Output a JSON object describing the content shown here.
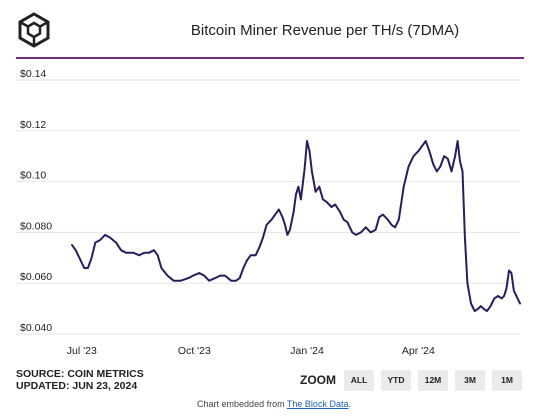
{
  "title": "Bitcoin Miner Revenue per TH/s (7DMA)",
  "footer": {
    "source": "SOURCE: COIN METRICS",
    "updated": "UPDATED: JUN 23, 2024"
  },
  "zoom": {
    "label": "ZOOM",
    "buttons": [
      "ALL",
      "YTD",
      "12M",
      "3M",
      "1M"
    ]
  },
  "embed": {
    "text": "Chart embedded from ",
    "link": "The Block Data",
    "suffix": "."
  },
  "colors": {
    "line": "#2b1c5e",
    "accent": "#7a2a7e",
    "grid": "#e6e6e6"
  },
  "icon": "cube-logo-icon",
  "chart_data": {
    "type": "line",
    "title": "Bitcoin Miner Revenue per TH/s (7DMA)",
    "xlabel": "",
    "ylabel": "",
    "x_ticks": [
      {
        "label": "Jul '23",
        "date": "2023-07-01"
      },
      {
        "label": "Oct '23",
        "date": "2023-10-01"
      },
      {
        "label": "Jan '24",
        "date": "2024-01-01"
      },
      {
        "label": "Apr '24",
        "date": "2024-04-01"
      }
    ],
    "y_ticks": [
      "$0.040",
      "$0.060",
      "$0.080",
      "$0.10",
      "$0.12",
      "$0.14"
    ],
    "y_tick_values": [
      0.04,
      0.06,
      0.08,
      0.1,
      0.12,
      0.14
    ],
    "ylim": [
      0.04,
      0.14
    ],
    "xlim": [
      "2023-06-23",
      "2024-06-23"
    ],
    "grid": "horizontal",
    "series": [
      {
        "points": [
          [
            "2023-06-23",
            0.075
          ],
          [
            "2023-06-26",
            0.073
          ],
          [
            "2023-06-30",
            0.069
          ],
          [
            "2023-07-03",
            0.066
          ],
          [
            "2023-07-06",
            0.066
          ],
          [
            "2023-07-09",
            0.07
          ],
          [
            "2023-07-12",
            0.076
          ],
          [
            "2023-07-16",
            0.077
          ],
          [
            "2023-07-20",
            0.079
          ],
          [
            "2023-07-24",
            0.078
          ],
          [
            "2023-07-29",
            0.076
          ],
          [
            "2023-08-02",
            0.073
          ],
          [
            "2023-08-06",
            0.072
          ],
          [
            "2023-08-12",
            0.072
          ],
          [
            "2023-08-17",
            0.071
          ],
          [
            "2023-08-21",
            0.072
          ],
          [
            "2023-08-25",
            0.072
          ],
          [
            "2023-08-29",
            0.073
          ],
          [
            "2023-09-01",
            0.071
          ],
          [
            "2023-09-04",
            0.066
          ],
          [
            "2023-09-09",
            0.063
          ],
          [
            "2023-09-14",
            0.061
          ],
          [
            "2023-09-20",
            0.061
          ],
          [
            "2023-09-26",
            0.062
          ],
          [
            "2023-09-30",
            0.063
          ],
          [
            "2023-10-05",
            0.064
          ],
          [
            "2023-10-09",
            0.063
          ],
          [
            "2023-10-13",
            0.061
          ],
          [
            "2023-10-18",
            0.062
          ],
          [
            "2023-10-22",
            0.063
          ],
          [
            "2023-10-26",
            0.063
          ],
          [
            "2023-10-31",
            0.061
          ],
          [
            "2023-11-04",
            0.061
          ],
          [
            "2023-11-07",
            0.062
          ],
          [
            "2023-11-10",
            0.066
          ],
          [
            "2023-11-13",
            0.069
          ],
          [
            "2023-11-16",
            0.071
          ],
          [
            "2023-11-20",
            0.071
          ],
          [
            "2023-11-23",
            0.074
          ],
          [
            "2023-11-26",
            0.078
          ],
          [
            "2023-11-29",
            0.083
          ],
          [
            "2023-12-03",
            0.085
          ],
          [
            "2023-12-06",
            0.087
          ],
          [
            "2023-12-09",
            0.089
          ],
          [
            "2023-12-12",
            0.086
          ],
          [
            "2023-12-14",
            0.083
          ],
          [
            "2023-12-16",
            0.079
          ],
          [
            "2023-12-18",
            0.081
          ],
          [
            "2023-12-21",
            0.088
          ],
          [
            "2023-12-23",
            0.095
          ],
          [
            "2023-12-25",
            0.098
          ],
          [
            "2023-12-27",
            0.093
          ],
          [
            "2023-12-30",
            0.105
          ],
          [
            "2024-01-01",
            0.116
          ],
          [
            "2024-01-03",
            0.112
          ],
          [
            "2024-01-05",
            0.104
          ],
          [
            "2024-01-08",
            0.096
          ],
          [
            "2024-01-11",
            0.098
          ],
          [
            "2024-01-14",
            0.093
          ],
          [
            "2024-01-17",
            0.092
          ],
          [
            "2024-01-21",
            0.09
          ],
          [
            "2024-01-24",
            0.091
          ],
          [
            "2024-01-28",
            0.088
          ],
          [
            "2024-01-31",
            0.085
          ],
          [
            "2024-02-03",
            0.084
          ],
          [
            "2024-02-07",
            0.08
          ],
          [
            "2024-02-10",
            0.079
          ],
          [
            "2024-02-14",
            0.08
          ],
          [
            "2024-02-18",
            0.082
          ],
          [
            "2024-02-22",
            0.08
          ],
          [
            "2024-02-26",
            0.081
          ],
          [
            "2024-02-29",
            0.086
          ],
          [
            "2024-03-03",
            0.087
          ],
          [
            "2024-03-07",
            0.085
          ],
          [
            "2024-03-10",
            0.083
          ],
          [
            "2024-03-13",
            0.082
          ],
          [
            "2024-03-16",
            0.085
          ],
          [
            "2024-03-20",
            0.098
          ],
          [
            "2024-03-24",
            0.106
          ],
          [
            "2024-03-28",
            0.11
          ],
          [
            "2024-04-01",
            0.112
          ],
          [
            "2024-04-04",
            0.114
          ],
          [
            "2024-04-07",
            0.116
          ],
          [
            "2024-04-10",
            0.112
          ],
          [
            "2024-04-13",
            0.107
          ],
          [
            "2024-04-16",
            0.104
          ],
          [
            "2024-04-19",
            0.106
          ],
          [
            "2024-04-22",
            0.11
          ],
          [
            "2024-04-25",
            0.109
          ],
          [
            "2024-04-28",
            0.104
          ],
          [
            "2024-05-01",
            0.11
          ],
          [
            "2024-05-03",
            0.116
          ],
          [
            "2024-05-05",
            0.108
          ],
          [
            "2024-05-07",
            0.104
          ],
          [
            "2024-05-09",
            0.078
          ],
          [
            "2024-05-11",
            0.06
          ],
          [
            "2024-05-14",
            0.052
          ],
          [
            "2024-05-17",
            0.049
          ],
          [
            "2024-05-20",
            0.05
          ],
          [
            "2024-05-22",
            0.051
          ],
          [
            "2024-05-24",
            0.05
          ],
          [
            "2024-05-27",
            0.049
          ],
          [
            "2024-05-30",
            0.051
          ],
          [
            "2024-06-02",
            0.054
          ],
          [
            "2024-06-05",
            0.055
          ],
          [
            "2024-06-08",
            0.054
          ],
          [
            "2024-06-10",
            0.055
          ],
          [
            "2024-06-12",
            0.058
          ],
          [
            "2024-06-14",
            0.065
          ],
          [
            "2024-06-16",
            0.064
          ],
          [
            "2024-06-18",
            0.057
          ],
          [
            "2024-06-21",
            0.054
          ],
          [
            "2024-06-23",
            0.052
          ]
        ]
      }
    ]
  }
}
